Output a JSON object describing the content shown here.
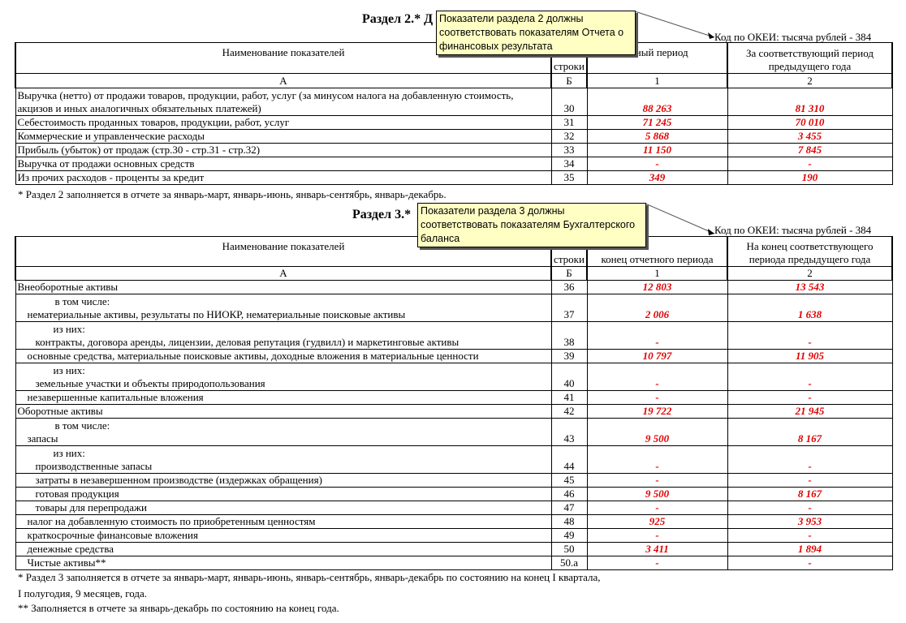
{
  "section2": {
    "title": "Раздел 2.* Д",
    "okei": "Код по ОКЕИ: тысяча рублей - 384",
    "tooltip": "Показатели раздела 2 должны соответствовать показателям Отчета о финансовых результата",
    "headers": {
      "name": "Наименование показателей",
      "code": "строки",
      "col1": "етный период",
      "col2": "За соответствующий период предыдущего года"
    },
    "letters": [
      "А",
      "Б",
      "1",
      "2"
    ],
    "rows": [
      {
        "name": "Выручка (нетто) от продажи товаров, продукции, работ, услуг (за минусом налога на добавленную стоимость, акцизов и иных аналогичных обязательных платежей)",
        "code": "30",
        "v1": "88 263",
        "v2": "81 310",
        "tall": true
      },
      {
        "name": "Себестоимость проданных товаров, продукции, работ, услуг",
        "code": "31",
        "v1": "71 245",
        "v2": "70 010"
      },
      {
        "name": "Коммерческие и управленческие расходы",
        "code": "32",
        "v1": "5 868",
        "v2": "3 455"
      },
      {
        "name": "Прибыль (убыток) от продаж (стр.30 - стр.31 - стр.32)",
        "code": "33",
        "v1": "11 150",
        "v2": "7 845"
      },
      {
        "name": "Выручка от продажи основных средств",
        "code": "34",
        "v1": "-",
        "v2": "-"
      },
      {
        "name": "Из прочих расходов - проценты за кредит",
        "code": "35",
        "v1": "349",
        "v2": "190"
      }
    ],
    "footnote": "* Раздел 2 заполняется в отчете за январь-март, январь-июнь, январь-сентябрь, январь-декабрь."
  },
  "section3": {
    "title": "Раздел 3.*",
    "okei": "Код по ОКЕИ: тысяча рублей - 384",
    "tooltip": "Показатели раздела 3 должны соответствовать показателям Бухгалтерского баланса",
    "headers": {
      "name": "Наименование показателей",
      "code": "строки",
      "col1": "конец отчетного периода",
      "col2": "На конец  соответствующего периода предыдущего года"
    },
    "letters": [
      "А",
      "Б",
      "1",
      "2"
    ],
    "rows": [
      {
        "name": "Внеоборотные активы",
        "indent": 0,
        "code": "36",
        "v1": "12 803",
        "v2": "13 543"
      },
      {
        "sub": "в том числе:",
        "name": "нематериальные активы, результаты по НИОКР, нематериальные поисковые активы",
        "indent": 1,
        "code": "37",
        "v1": "2 006",
        "v2": "1 638"
      },
      {
        "sub": "из них:",
        "name": "контракты, договора аренды, лицензии, деловая репутация (гудвилл) и маркетинговые активы",
        "indent": 2,
        "code": "38",
        "v1": "-",
        "v2": "-"
      },
      {
        "name": "основные средства, материальные поисковые активы, доходные вложения в материальные ценности",
        "indent": 1,
        "code": "39",
        "v1": "10 797",
        "v2": "11 905"
      },
      {
        "sub": "из них:",
        "name": "земельные участки и объекты природопользования",
        "indent": 2,
        "code": "40",
        "v1": "-",
        "v2": "-"
      },
      {
        "name": "незавершенные капитальные вложения",
        "indent": 1,
        "code": "41",
        "v1": "-",
        "v2": "-"
      },
      {
        "name": "Оборотные активы",
        "indent": 0,
        "code": "42",
        "v1": "19 722",
        "v2": "21 945"
      },
      {
        "sub": "в том числе:",
        "name": "запасы",
        "indent": 1,
        "code": "43",
        "v1": "9 500",
        "v2": "8 167"
      },
      {
        "sub": "из них:",
        "name": "производственные запасы",
        "indent": 2,
        "code": "44",
        "v1": "-",
        "v2": "-"
      },
      {
        "name": "затраты в незавершенном производстве (издержках обращения)",
        "indent": 2,
        "code": "45",
        "v1": "-",
        "v2": "-"
      },
      {
        "name": "готовая продукция",
        "indent": 2,
        "code": "46",
        "v1": "9 500",
        "v2": "8 167"
      },
      {
        "name": "товары для перепродажи",
        "indent": 2,
        "code": "47",
        "v1": "-",
        "v2": "-"
      },
      {
        "name": "налог на добавленную стоимость по приобретенным ценностям",
        "indent": 1,
        "code": "48",
        "v1": "925",
        "v2": "3 953"
      },
      {
        "name": "краткосрочные финансовые вложения",
        "indent": 1,
        "code": "49",
        "v1": "-",
        "v2": "-"
      },
      {
        "name": "денежные средства",
        "indent": 1,
        "code": "50",
        "v1": "3 411",
        "v2": "1 894"
      },
      {
        "name": "Чистые активы**",
        "indent": 1,
        "code": "50.а",
        "v1": "-",
        "v2": "-"
      }
    ],
    "footnotes": [
      "* Раздел 3 заполняется в отчете за январь-март, январь-июнь, январь-сентябрь, январь-декабрь по состоянию на конец  I квартала,",
      "I полугодия, 9 месяцев, года.",
      "** Заполняется в отчете за январь-декабрь по состоянию на конец года."
    ]
  },
  "colors": {
    "value": "#e00000",
    "tooltip_bg": "#ffffc4"
  }
}
